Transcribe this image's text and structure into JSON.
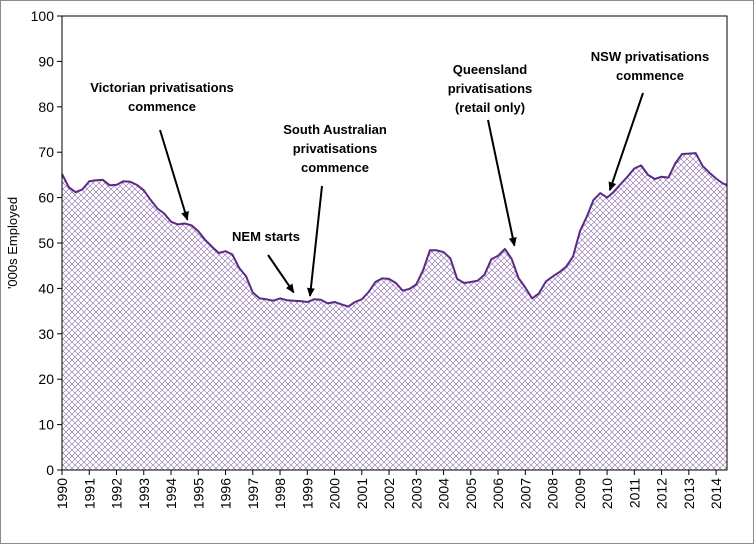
{
  "chart_data": {
    "type": "area",
    "title": "",
    "xlabel": "",
    "ylabel": "'000s Employed",
    "ylim": [
      0,
      100
    ],
    "yticks": [
      "0",
      "10",
      "20",
      "30",
      "40",
      "50",
      "60",
      "70",
      "80",
      "90",
      "100"
    ],
    "xticks": [
      "1990",
      "1991",
      "1992",
      "1993",
      "1994",
      "1995",
      "1996",
      "1997",
      "1998",
      "1999",
      "2000",
      "2001",
      "2002",
      "2003",
      "2004",
      "2005",
      "2006",
      "2007",
      "2008",
      "2009",
      "2010",
      "2011",
      "2012",
      "2013",
      "2014"
    ],
    "xlim": [
      1990,
      2014.4
    ],
    "grid": false,
    "legend": "none",
    "colors": {
      "line": "#5b2a86",
      "hatch": "#7e5a9e",
      "frame": "#000000"
    },
    "series": [
      {
        "x": [
          1990.0,
          1990.25,
          1990.5,
          1990.75,
          1991.0,
          1991.25,
          1991.5,
          1991.75,
          1992.0,
          1992.25,
          1992.5,
          1992.75,
          1993.0,
          1993.25,
          1993.5,
          1993.75,
          1994.0,
          1994.25,
          1994.5,
          1994.75,
          1995.0,
          1995.25,
          1995.5,
          1995.75,
          1996.0,
          1996.25,
          1996.5,
          1996.75,
          1997.0,
          1997.25,
          1997.5,
          1997.75,
          1998.0,
          1998.25,
          1998.5,
          1998.75,
          1999.0,
          1999.25,
          1999.5,
          1999.75,
          2000.0,
          2000.25,
          2000.5,
          2000.75,
          2001.0,
          2001.25,
          2001.5,
          2001.75,
          2002.0,
          2002.25,
          2002.5,
          2002.75,
          2003.0,
          2003.25,
          2003.5,
          2003.75,
          2004.0,
          2004.25,
          2004.5,
          2004.75,
          2005.0,
          2005.25,
          2005.5,
          2005.75,
          2006.0,
          2006.25,
          2006.5,
          2006.75,
          2007.0,
          2007.25,
          2007.5,
          2007.75,
          2008.0,
          2008.25,
          2008.5,
          2008.75,
          2009.0,
          2009.25,
          2009.5,
          2009.75,
          2010.0,
          2010.25,
          2010.5,
          2010.75,
          2011.0,
          2011.25,
          2011.5,
          2011.75,
          2012.0,
          2012.25,
          2012.5,
          2012.75,
          2013.0,
          2013.25,
          2013.5,
          2013.75,
          2014.0,
          2014.25,
          2014.4
        ],
        "values": [
          65.2,
          62.3,
          61.2,
          61.8,
          63.6,
          63.8,
          63.9,
          62.7,
          62.8,
          63.6,
          63.5,
          62.8,
          61.6,
          59.5,
          57.6,
          56.5,
          54.7,
          54.1,
          54.3,
          53.9,
          52.6,
          50.7,
          49.2,
          47.8,
          48.2,
          47.5,
          44.5,
          42.7,
          39.1,
          37.8,
          37.6,
          37.3,
          37.8,
          37.4,
          37.3,
          37.2,
          37.0,
          37.6,
          37.5,
          36.7,
          37.0,
          36.5,
          36.0,
          37.0,
          37.6,
          39.2,
          41.4,
          42.2,
          42.1,
          41.2,
          39.5,
          39.9,
          40.9,
          44.0,
          48.4,
          48.4,
          48.0,
          46.6,
          42.1,
          41.2,
          41.4,
          41.7,
          43.0,
          46.4,
          47.2,
          48.7,
          46.5,
          42.3,
          40.2,
          37.8,
          38.9,
          41.5,
          42.6,
          43.6,
          44.8,
          47.0,
          52.5,
          55.7,
          59.5,
          61.0,
          60.0,
          61.3,
          63.0,
          64.6,
          66.4,
          67.1,
          65.0,
          64.1,
          64.6,
          64.4,
          67.5,
          69.6,
          69.7,
          69.8,
          67.0,
          65.5,
          64.2,
          63.1,
          62.8
        ]
      }
    ],
    "annotations": [
      {
        "text": [
          "Victorian privatisations",
          "commence"
        ],
        "x": 1994.6,
        "y": 53.8
      },
      {
        "text": [
          "NEM starts"
        ],
        "x": 1998.5,
        "y": 37.8
      },
      {
        "text": [
          "South Australian",
          "privatisations",
          "commence"
        ],
        "x": 1999.1,
        "y": 37.0
      },
      {
        "text": [
          "Queensland",
          "privatisations",
          "(retail only)"
        ],
        "x": 2006.6,
        "y": 48.1
      },
      {
        "text": [
          "NSW privatisations",
          "commence"
        ],
        "x": 2010.1,
        "y": 60.3
      }
    ]
  }
}
